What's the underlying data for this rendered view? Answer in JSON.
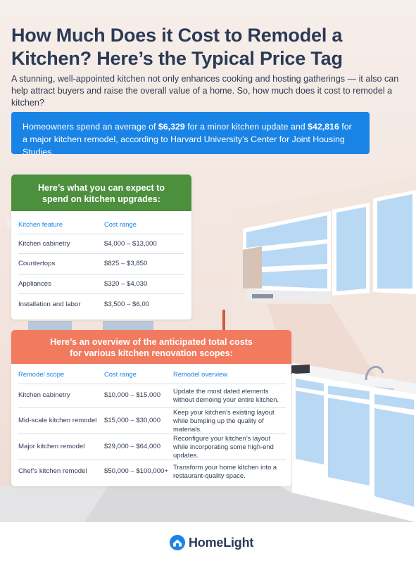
{
  "header": {
    "title": "How Much Does it Cost to Remodel a Kitchen? Here’s the Typical Price Tag",
    "intro": "A stunning, well-appointed kitchen not only enhances cooking and hosting gatherings — it also can help attract buyers and raise the overall value of a home. So, how much does it cost to remodel a kitchen?"
  },
  "callout": {
    "part1": "Homeowners spend an average of ",
    "minor_cost": "$6,329",
    "part2": " for a minor kitchen update and ",
    "major_cost": "$42,816",
    "part3": " for a major kitchen remodel, according to Harvard University’s Center for Joint Housing Studies."
  },
  "upgrades": {
    "heading_line1": "Here’s what you can expect to",
    "heading_line2": "spend on kitchen upgrades:",
    "col_feature": "Kitchen feature",
    "col_cost": "Cost range",
    "rows": [
      {
        "feature": "Kitchen cabinetry",
        "cost": "$4,000 – $13,000"
      },
      {
        "feature": "Countertops",
        "cost": "$825 – $3,850"
      },
      {
        "feature": "Appliances",
        "cost": "$320 – $4,030"
      },
      {
        "feature": "Installation and labor",
        "cost": "$3,500 – $6,00"
      }
    ]
  },
  "scopes": {
    "heading_line1": "Here’s an overview of the anticipated total costs",
    "heading_line2": "for various kitchen renovation scopes:",
    "col_scope": "Remodel scope",
    "col_cost": "Cost range",
    "col_overview": "Remodel overview",
    "rows": [
      {
        "scope": "Kitchen cabinetry",
        "cost": "$10,000 – $15,000",
        "overview": "Update the most dated elements without demoing your entire kitchen."
      },
      {
        "scope": "Mid-scale kitchen remodel",
        "cost": "$15,000 – $30,000",
        "overview": "Keep your kitchen’s existing layout while bumping up the quality of materials."
      },
      {
        "scope": "Major kitchen remodel",
        "cost": "$29,000 – $64,000",
        "overview": "Reconfigure your kitchen’s layout while incorporating some high-end updates."
      },
      {
        "scope": "Chef’s kitchen remodel",
        "cost": "$50,000 – $100,000+",
        "overview": "Transform your home kitchen into a restaurant-quality space."
      }
    ]
  },
  "footer": {
    "brand": "HomeLight",
    "icon": "homelight-logo-icon"
  },
  "colors": {
    "blue": "#1a84e6",
    "green": "#4c8f3d",
    "coral": "#f27b5f",
    "navy": "#2b3a55"
  }
}
